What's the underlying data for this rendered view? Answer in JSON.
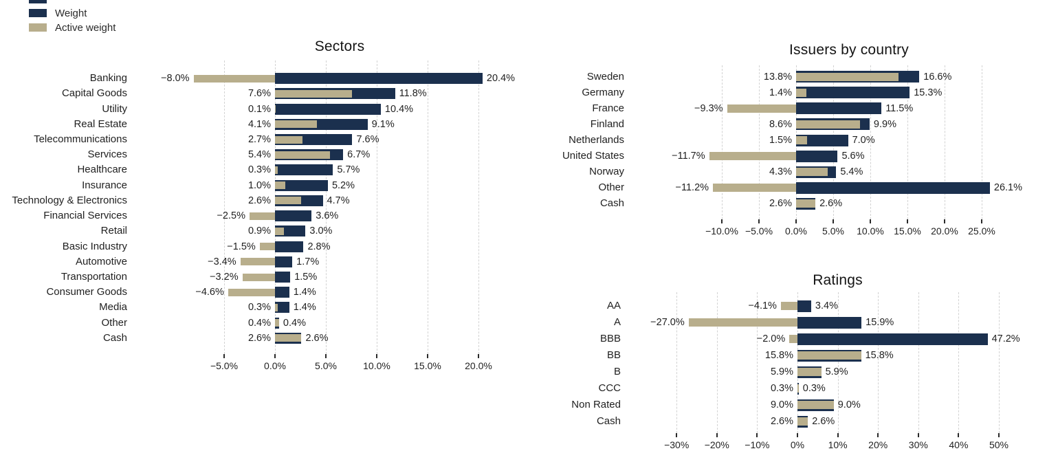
{
  "colors": {
    "weight": "#1b304e",
    "active_weight": "#b8ae8c",
    "gridline": "#d2d2d2",
    "text": "#1f1f1f"
  },
  "legend": {
    "items": [
      {
        "label": "Weight",
        "color": "#1b304e"
      },
      {
        "label": "Active weight",
        "color": "#b8ae8c"
      }
    ]
  },
  "chart_data": [
    {
      "id": "sectors",
      "type": "bar",
      "orientation": "horizontal",
      "title": "Sectors",
      "grid": "vertical-dashed",
      "legend_position": "figure-top-left",
      "xlim": [
        -9.4,
        21.9
      ],
      "categories": [
        "Banking",
        "Capital Goods",
        "Utility",
        "Real Estate",
        "Telecommunications",
        "Services",
        "Healthcare",
        "Insurance",
        "Technology & Electronics",
        "Financial Services",
        "Retail",
        "Basic Industry",
        "Automotive",
        "Transportation",
        "Consumer Goods",
        "Media",
        "Other",
        "Cash"
      ],
      "series": [
        {
          "name": "Weight",
          "values": [
            20.4,
            11.8,
            10.4,
            9.1,
            7.6,
            6.7,
            5.7,
            5.2,
            4.7,
            3.6,
            3.0,
            2.8,
            1.7,
            1.5,
            1.4,
            1.4,
            0.4,
            2.6
          ]
        },
        {
          "name": "Active weight",
          "values": [
            -8.0,
            7.6,
            0.1,
            4.1,
            2.7,
            5.4,
            0.3,
            1.0,
            2.6,
            -2.5,
            0.9,
            -1.5,
            -3.4,
            -3.2,
            -4.6,
            0.3,
            0.4,
            2.6
          ]
        }
      ],
      "value_labels": {
        "weight": [
          "20.4%",
          "11.8%",
          "10.4%",
          "9.1%",
          "7.6%",
          "6.7%",
          "5.7%",
          "5.2%",
          "4.7%",
          "3.6%",
          "3.0%",
          "2.8%",
          "1.7%",
          "1.5%",
          "1.4%",
          "1.4%",
          "0.4%",
          "2.6%"
        ],
        "active": [
          "−8.0%",
          "7.6%",
          "0.1%",
          "4.1%",
          "2.7%",
          "5.4%",
          "0.3%",
          "1.0%",
          "2.6%",
          "−2.5%",
          "0.9%",
          "−1.5%",
          "−3.4%",
          "−3.2%",
          "−4.6%",
          "0.3%",
          "0.4%",
          "2.6%"
        ]
      },
      "x_ticks": [
        {
          "value": -5,
          "label": "−5.0%"
        },
        {
          "value": 0,
          "label": "0.0%"
        },
        {
          "value": 5,
          "label": "5.0%"
        },
        {
          "value": 10,
          "label": "10.0%"
        },
        {
          "value": 15,
          "label": "15.0%"
        },
        {
          "value": 20,
          "label": "20.0%"
        }
      ]
    },
    {
      "id": "issuers",
      "type": "bar",
      "orientation": "horizontal",
      "title": "Issuers by country",
      "grid": "vertical-dashed",
      "legend_position": "figure-top-left",
      "xlim": [
        -13.9,
        28.1
      ],
      "categories": [
        "Sweden",
        "Germany",
        "France",
        "Finland",
        "Netherlands",
        "United States",
        "Norway",
        "Other",
        "Cash"
      ],
      "series": [
        {
          "name": "Weight",
          "values": [
            16.6,
            15.3,
            11.5,
            9.9,
            7.0,
            5.6,
            5.4,
            26.1,
            2.6
          ]
        },
        {
          "name": "Active weight",
          "values": [
            13.8,
            1.4,
            -9.3,
            8.6,
            1.5,
            -11.7,
            4.3,
            -11.2,
            2.6
          ]
        }
      ],
      "value_labels": {
        "weight": [
          "16.6%",
          "15.3%",
          "11.5%",
          "9.9%",
          "7.0%",
          "5.6%",
          "5.4%",
          "26.1%",
          "2.6%"
        ],
        "active": [
          "13.8%",
          "1.4%",
          "−9.3%",
          "8.6%",
          "1.5%",
          "−11.7%",
          "4.3%",
          "−11.2%",
          "2.6%"
        ]
      },
      "x_ticks": [
        {
          "value": -10,
          "label": "−10.0%"
        },
        {
          "value": -5,
          "label": "−5.0%"
        },
        {
          "value": 0,
          "label": "0.0%"
        },
        {
          "value": 5,
          "label": "5.0%"
        },
        {
          "value": 10,
          "label": "10.0%"
        },
        {
          "value": 15,
          "label": "15.0%"
        },
        {
          "value": 20,
          "label": "20.0%"
        },
        {
          "value": 25,
          "label": "25.0%"
        }
      ]
    },
    {
      "id": "ratings",
      "type": "bar",
      "orientation": "horizontal",
      "title": "Ratings",
      "grid": "vertical-dashed",
      "legend_position": "figure-top-left",
      "xlim": [
        -31.6,
        51.5
      ],
      "categories": [
        "AA",
        "A",
        "BBB",
        "BB",
        "B",
        "CCC",
        "Non Rated",
        "Cash"
      ],
      "series": [
        {
          "name": "Weight",
          "values": [
            3.4,
            15.9,
            47.2,
            15.8,
            5.9,
            0.3,
            9.0,
            2.6
          ]
        },
        {
          "name": "Active weight",
          "values": [
            -4.1,
            -27.0,
            -2.0,
            15.8,
            5.9,
            0.3,
            9.0,
            2.6
          ]
        }
      ],
      "value_labels": {
        "weight": [
          "3.4%",
          "15.9%",
          "47.2%",
          "15.8%",
          "5.9%",
          "0.3%",
          "9.0%",
          "2.6%"
        ],
        "active": [
          "−4.1%",
          "−27.0%",
          "−2.0%",
          "15.8%",
          "5.9%",
          "0.3%",
          "9.0%",
          "2.6%"
        ]
      },
      "x_ticks": [
        {
          "value": -30,
          "label": "−30%"
        },
        {
          "value": -20,
          "label": "−20%"
        },
        {
          "value": -10,
          "label": "−10%"
        },
        {
          "value": 0,
          "label": "0%"
        },
        {
          "value": 10,
          "label": "10%"
        },
        {
          "value": 20,
          "label": "20%"
        },
        {
          "value": 30,
          "label": "30%"
        },
        {
          "value": 40,
          "label": "40%"
        },
        {
          "value": 50,
          "label": "50%"
        }
      ]
    }
  ]
}
